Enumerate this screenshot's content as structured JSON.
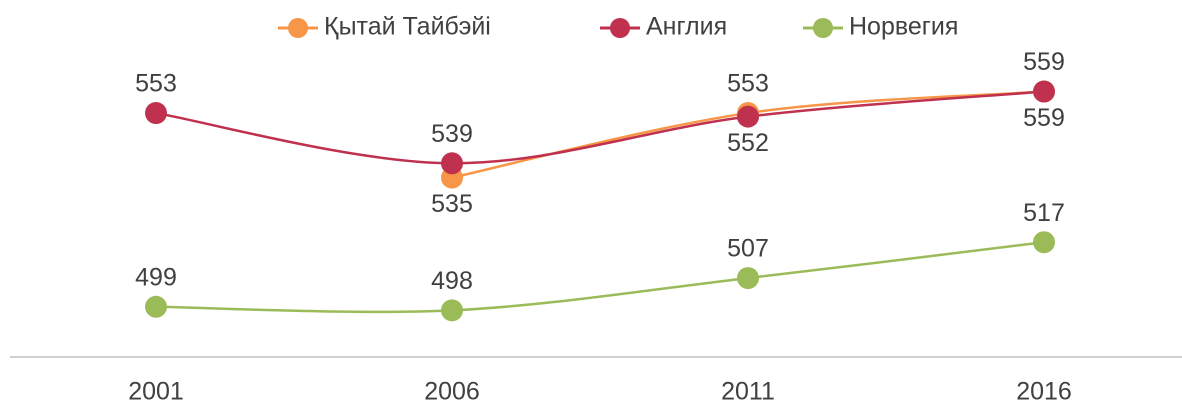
{
  "chart_data": {
    "type": "line",
    "categories": [
      "2001",
      "2006",
      "2011",
      "2016"
    ],
    "series": [
      {
        "name": "Қытай Тайбэйі",
        "color": "#f79646",
        "values": [
          null,
          535,
          553,
          559
        ]
      },
      {
        "name": "Англия",
        "color": "#c0304f",
        "values": [
          553,
          539,
          552,
          559
        ]
      },
      {
        "name": "Норвегия",
        "color": "#9bbb59",
        "values": [
          499,
          498,
          507,
          517
        ]
      }
    ],
    "ylim": [
      485,
      565
    ],
    "legend": "top"
  }
}
